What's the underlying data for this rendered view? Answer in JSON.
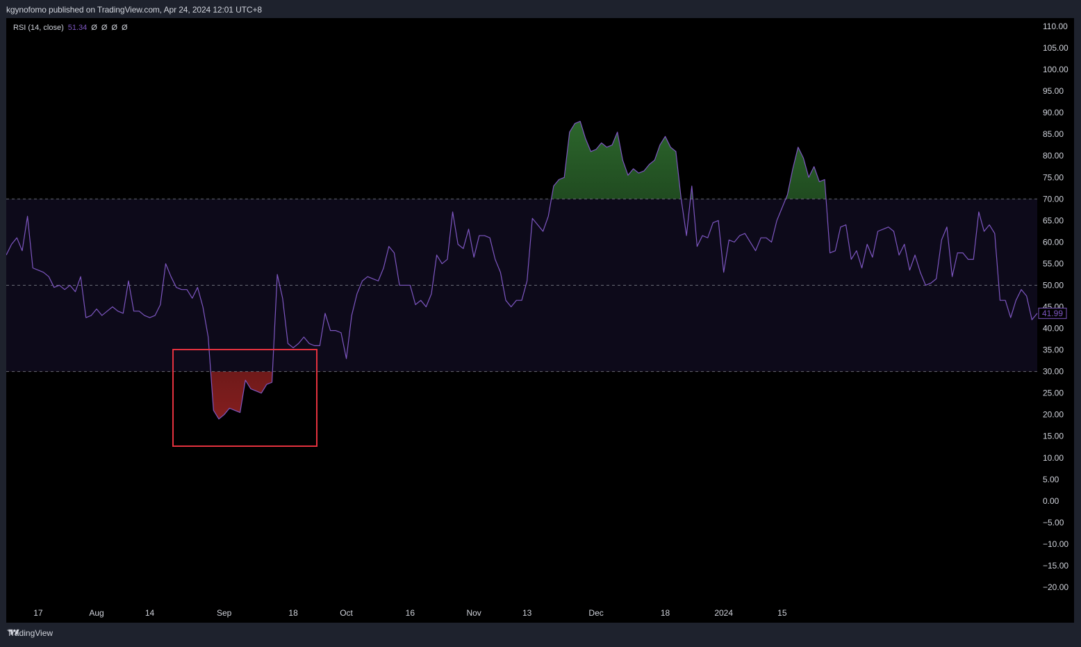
{
  "header": {
    "title": "kgynofomo published on TradingView.com, Apr 24, 2024 12:01 UTC+8"
  },
  "legend": {
    "name": "RSI (14, close)",
    "value": "51.34",
    "placeholders": [
      "Ø",
      "Ø",
      "Ø",
      "Ø"
    ]
  },
  "footer": {
    "brand": "TradingView",
    "logo_icon": "tradingview-logo-icon"
  },
  "colors": {
    "rsi_line": "#7e57c2",
    "band_fill": "#0d0a1a",
    "overbought_fill": "#2e6b2e",
    "oversold_fill": "#8b2020",
    "highlight_box": "#e5323f",
    "current_label_border": "#7e57c2"
  },
  "chart_data": {
    "type": "line",
    "title": "",
    "xlabel": "",
    "ylabel": "",
    "ylim": [
      -22.5,
      112
    ],
    "y_ticks": [
      110,
      105,
      100,
      95,
      90,
      85,
      80,
      75,
      70,
      65,
      60,
      55,
      50,
      45,
      40,
      35,
      30,
      25,
      20,
      15,
      10,
      5,
      0,
      -5,
      -10,
      -15,
      -20
    ],
    "y_tick_labels": [
      "110.00",
      "105.00",
      "100.00",
      "95.00",
      "90.00",
      "85.00",
      "80.00",
      "75.00",
      "70.00",
      "65.00",
      "60.00",
      "55.00",
      "50.00",
      "45.00",
      "40.00",
      "35.00",
      "30.00",
      "25.00",
      "20.00",
      "15.00",
      "10.00",
      "5.00",
      "0.00",
      "−5.00",
      "−10.00",
      "−15.00",
      "−20.00"
    ],
    "x_tick_labels": [
      {
        "label": "17",
        "index": 6
      },
      {
        "label": "Aug",
        "index": 17
      },
      {
        "label": "14",
        "index": 27
      },
      {
        "label": "Sep",
        "index": 41
      },
      {
        "label": "18",
        "index": 54
      },
      {
        "label": "Oct",
        "index": 64
      },
      {
        "label": "16",
        "index": 76
      },
      {
        "label": "Nov",
        "index": 88
      },
      {
        "label": "13",
        "index": 98
      },
      {
        "label": "Dec",
        "index": 111
      },
      {
        "label": "18",
        "index": 124
      },
      {
        "label": "2024",
        "index": 135
      },
      {
        "label": "15",
        "index": 146
      }
    ],
    "levels": {
      "overbought": 70,
      "middle": 50,
      "oversold": 30
    },
    "current_value_label": "41.99",
    "series": [
      {
        "values": [
          57,
          59.5,
          61,
          58,
          66,
          54,
          53.5,
          53,
          52,
          49.5,
          50,
          49,
          50,
          48.5,
          52,
          42.5,
          43,
          44.5,
          43,
          44,
          45,
          44,
          43.5,
          51,
          44,
          44,
          43,
          42.5,
          43,
          45.5,
          55,
          52,
          49.5,
          49,
          49,
          47,
          49.5,
          45,
          38,
          21,
          19,
          20,
          21.5,
          21,
          20.5,
          28,
          26,
          25.5,
          25,
          27,
          27.5,
          52.5,
          47,
          36.5,
          35.5,
          36.5,
          38,
          36.5,
          36,
          36,
          43.5,
          39.5,
          39.5,
          39,
          33,
          43,
          48,
          51,
          52,
          51.5,
          51,
          54,
          59,
          57.5,
          50,
          50,
          50,
          45.5,
          46.5,
          45,
          48,
          57,
          55,
          56,
          67,
          59.5,
          58.5,
          63,
          56.5,
          61.5,
          61.5,
          61,
          56,
          53,
          46.5,
          45,
          46.5,
          46.5,
          51,
          65.5,
          64,
          62.5,
          66,
          73,
          74.5,
          75,
          85.5,
          87.5,
          88,
          84,
          81,
          81.5,
          83,
          82,
          82.5,
          85.5,
          79,
          75.5,
          77,
          76,
          76.5,
          78,
          79,
          82.5,
          84.5,
          82,
          81,
          70,
          61.5,
          73,
          59,
          61.5,
          61,
          64.5,
          65,
          53,
          60.5,
          60,
          61.5,
          62,
          60,
          58,
          61,
          61,
          60,
          65,
          68,
          71,
          77,
          82,
          79.5,
          75,
          77.5,
          74,
          74.5,
          57.5,
          58,
          63.5,
          64,
          56,
          58,
          54,
          59.5,
          56.5,
          62.5,
          63,
          63.5,
          62.5,
          57,
          59.5,
          53.5,
          57,
          53,
          50,
          50.5,
          51.5,
          60.5,
          63.5,
          52,
          57.5,
          57.5,
          56,
          56,
          67,
          62.5,
          64,
          62,
          46.5,
          46.5,
          42.5,
          46.5,
          49,
          47.5,
          42,
          43.5
        ]
      }
    ]
  }
}
